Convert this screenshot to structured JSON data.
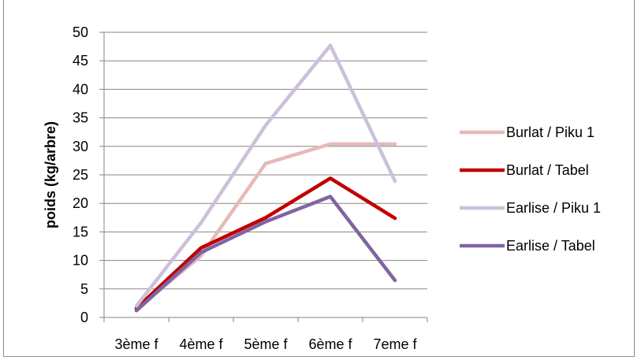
{
  "chart_data": {
    "type": "line",
    "title": "",
    "xlabel": "",
    "ylabel": "poids (kg/arbre)",
    "categories": [
      "3ème f",
      "4ème f",
      "5ème f",
      "6ème f",
      "7eme f"
    ],
    "ylim": [
      0,
      50
    ],
    "yticks": [
      0,
      5,
      10,
      15,
      20,
      25,
      30,
      35,
      40,
      45,
      50
    ],
    "grid": "horizontal",
    "legend_position": "right",
    "series": [
      {
        "name": "Burlat / Piku 1",
        "color": "#e6b9b8",
        "values": [
          1.5,
          10.8,
          27.0,
          30.4,
          30.4
        ]
      },
      {
        "name": "Burlat / Tabel",
        "color": "#c00000",
        "values": [
          1.6,
          12.2,
          17.5,
          24.4,
          17.4
        ]
      },
      {
        "name": "Earlise / Piku 1",
        "color": "#ccc0da",
        "values": [
          2.0,
          16.6,
          33.7,
          47.7,
          23.9
        ]
      },
      {
        "name": "Earlise / Tabel",
        "color": "#8064a2",
        "values": [
          1.2,
          11.4,
          16.8,
          21.2,
          6.5
        ]
      }
    ]
  }
}
